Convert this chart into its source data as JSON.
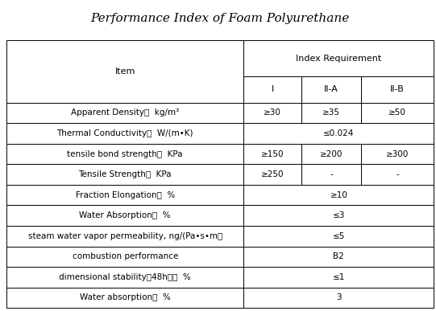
{
  "title": "Performance Index of Foam Polyurethane",
  "rows": [
    [
      "Apparent Density，  kg/m³",
      "≥30",
      "≥35",
      "≥50",
      false
    ],
    [
      "Thermal Conductivity，  W/(m•K)",
      "≤0.024",
      "",
      "",
      true
    ],
    [
      "tensile bond strength，  KPa",
      "≥150",
      "≥200",
      "≥300",
      false
    ],
    [
      "Tensile Strength，  KPa",
      "≥250",
      "-",
      "-",
      false
    ],
    [
      "Fraction Elongation，  %",
      "≥10",
      "",
      "",
      true
    ],
    [
      "Water Absorption，  %",
      "≤3",
      "",
      "",
      true
    ],
    [
      "steam water vapor permeability, ng/(Pa•s•m）",
      "≤5",
      "",
      "",
      true
    ],
    [
      "combustion performance",
      "B2",
      "",
      "",
      true
    ],
    [
      "dimensional stability（48h），  %",
      "≤1",
      "",
      "",
      true
    ],
    [
      "Water absorption，  %",
      "3",
      "",
      "",
      true
    ]
  ],
  "background_color": "#ffffff",
  "border_color": "#000000",
  "text_color": "#000000",
  "title_fontsize": 11,
  "header_fontsize": 8,
  "cell_fontsize": 7.5
}
